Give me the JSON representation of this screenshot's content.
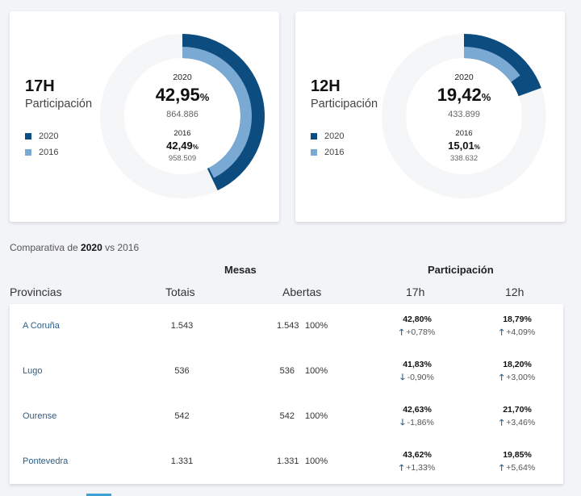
{
  "colors": {
    "series_2020": "#0d4c7f",
    "series_2016": "#7aaad3",
    "track": "#f5f6f8",
    "link": "#2a5d8a",
    "accent_tab": "#3da0d6"
  },
  "cards": [
    {
      "hour": "17H",
      "subtitle": "Participación",
      "legend": [
        {
          "label": "2020"
        },
        {
          "label": "2016"
        }
      ],
      "y2020_label": "2020",
      "y2020_value": "42,95",
      "y2020_pct": "%",
      "y2020_votes": "864.886",
      "y2016_label": "2016",
      "y2016_value": "42,49",
      "y2016_pct": "%",
      "y2016_votes": "958.509"
    },
    {
      "hour": "12H",
      "subtitle": "Participación",
      "legend": [
        {
          "label": "2020"
        },
        {
          "label": "2016"
        }
      ],
      "y2020_label": "2020",
      "y2020_value": "19,42",
      "y2020_pct": "%",
      "y2020_votes": "433.899",
      "y2016_label": "2016",
      "y2016_value": "15,01",
      "y2016_pct": "%",
      "y2016_votes": "338.632"
    }
  ],
  "chart_data": [
    {
      "type": "pie",
      "title": "17H Participación",
      "series": [
        {
          "name": "2020",
          "values": [
            42.95
          ]
        },
        {
          "name": "2016",
          "values": [
            42.49
          ]
        }
      ],
      "max": 100
    },
    {
      "type": "pie",
      "title": "12H Participación",
      "series": [
        {
          "name": "2020",
          "values": [
            19.42
          ]
        },
        {
          "name": "2016",
          "values": [
            15.01
          ]
        }
      ],
      "max": 100
    }
  ],
  "compare": {
    "prefix": "Comparativa de ",
    "year_bold": "2020",
    "suffix": " vs 2016"
  },
  "table": {
    "group_headers": {
      "mesas": "Mesas",
      "participacion": "Participación"
    },
    "columns": {
      "provincias": "Provincias",
      "totais": "Totais",
      "abertas": "Abertas",
      "h17": "17h",
      "h12": "12h"
    },
    "rows": [
      {
        "provincia": "A Coruña",
        "totais": "1.543",
        "abertas": "1.543",
        "abertas_pct": "100%",
        "p17": "42,80%",
        "p17_dir": "up",
        "p17_arrow": "🡑",
        "p17_diff": "+0,78%",
        "p12": "18,79%",
        "p12_dir": "up",
        "p12_arrow": "🡑",
        "p12_diff": "+4,09%"
      },
      {
        "provincia": "Lugo",
        "totais": "536",
        "abertas": "536",
        "abertas_pct": "100%",
        "p17": "41,83%",
        "p17_dir": "down",
        "p17_arrow": "🡓",
        "p17_diff": "-0,90%",
        "p12": "18,20%",
        "p12_dir": "up",
        "p12_arrow": "🡑",
        "p12_diff": "+3,00%"
      },
      {
        "provincia": "Ourense",
        "totais": "542",
        "abertas": "542",
        "abertas_pct": "100%",
        "p17": "42,63%",
        "p17_dir": "down",
        "p17_arrow": "🡓",
        "p17_diff": "-1,86%",
        "p12": "21,70%",
        "p12_dir": "up",
        "p12_arrow": "🡑",
        "p12_diff": "+3,46%"
      },
      {
        "provincia": "Pontevedra",
        "totais": "1.331",
        "abertas": "1.331",
        "abertas_pct": "100%",
        "p17": "43,62%",
        "p17_dir": "up",
        "p17_arrow": "🡑",
        "p17_diff": "+1,33%",
        "p12": "19,85%",
        "p12_dir": "up",
        "p12_arrow": "🡑",
        "p12_diff": "+5,64%"
      }
    ]
  }
}
